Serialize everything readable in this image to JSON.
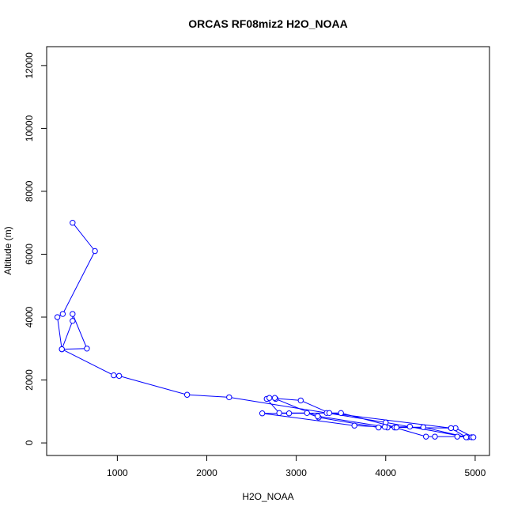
{
  "chart_data": {
    "type": "line",
    "title": "ORCAS RF08miz2 H2O_NOAA",
    "xlabel": "H2O_NOAA",
    "ylabel": "Altitude (m)",
    "xlim": [
      210,
      5160
    ],
    "ylim": [
      -400,
      12600
    ],
    "xticks": [
      1000,
      2000,
      3000,
      4000,
      5000
    ],
    "yticks": [
      0,
      2000,
      4000,
      6000,
      8000,
      10000,
      12000
    ],
    "xtick_labels": [
      "1000",
      "2000",
      "3000",
      "4000",
      "5000"
    ],
    "ytick_labels": [
      "0",
      "2000",
      "4000",
      "6000",
      "8000",
      "10000",
      "12000"
    ],
    "series": [
      {
        "color": "#0000ff",
        "marker": "open-circle",
        "x": [
          500,
          750,
          390,
          330,
          380,
          500,
          500,
          660,
          380,
          960,
          1020,
          1780,
          2250,
          4000,
          4920,
          4960,
          4800,
          4550,
          4450,
          4100,
          3650,
          2620,
          2920,
          3340,
          3500,
          4120,
          4780,
          4980,
          4900,
          4270,
          4020,
          3920,
          3250,
          3120,
          2810,
          2670,
          2700,
          3050,
          3370,
          4730,
          4900,
          4420,
          3990,
          3240,
          2770,
          2760
        ],
        "y": [
          7000,
          6100,
          4100,
          4000,
          2980,
          3880,
          4100,
          3000,
          2980,
          2150,
          2130,
          1530,
          1450,
          650,
          180,
          180,
          200,
          200,
          200,
          490,
          550,
          940,
          940,
          950,
          950,
          490,
          470,
          180,
          180,
          520,
          490,
          490,
          810,
          950,
          950,
          1400,
          1430,
          1350,
          950,
          470,
          180,
          500,
          510,
          850,
          1400,
          1430
        ]
      }
    ]
  }
}
